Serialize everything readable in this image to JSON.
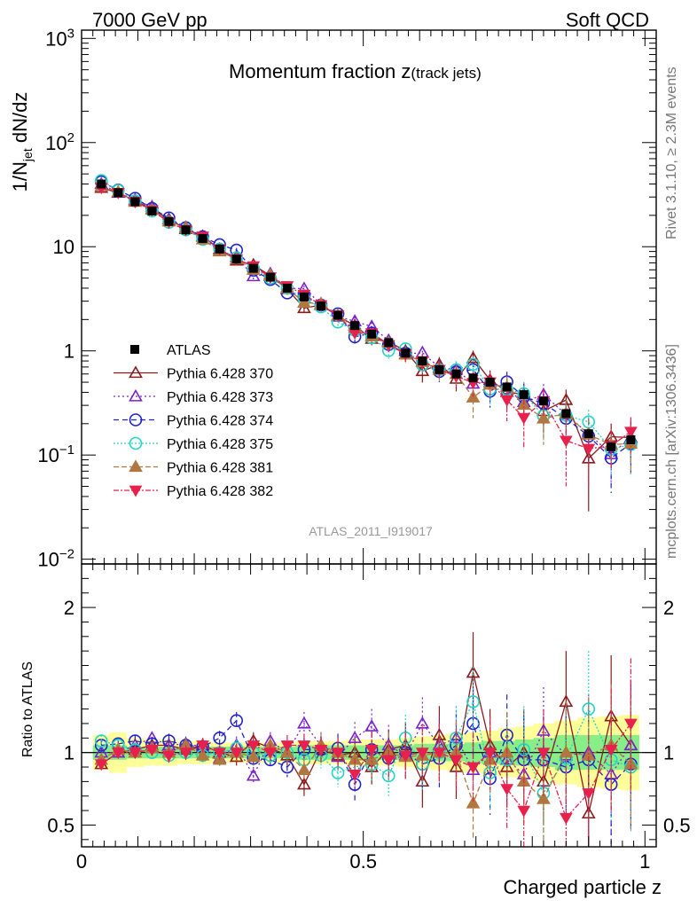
{
  "header": {
    "left": "7000 GeV pp",
    "right": "Soft QCD"
  },
  "side": {
    "rivet": "Rivet 3.1.10, ≥ 2.3M events",
    "mcplots": "mcplots.cern.ch [arXiv:1306.3436]"
  },
  "chart_data": [
    {
      "type": "scatter",
      "role": "main",
      "title_main": "Momentum fraction z",
      "title_sub": "(track jets)",
      "ylabel": "1/N",
      "ylabel_sub": "jet",
      "ylabel_rest": " dN/dz",
      "yscale": "log",
      "ylim": [
        0.009,
        1200
      ],
      "xlim": [
        0,
        1.02
      ],
      "yticks": [
        {
          "v": 1000,
          "base": "10",
          "exp": "3"
        },
        {
          "v": 100,
          "base": "10",
          "exp": "2"
        },
        {
          "v": 10,
          "base": "10",
          "exp": ""
        },
        {
          "v": 1,
          "base": "1",
          "exp": ""
        },
        {
          "v": 0.1,
          "base": "10",
          "exp": "−1"
        },
        {
          "v": 0.01,
          "base": "10",
          "exp": "−2"
        }
      ],
      "watermark": "ATLAS_2011_I919017",
      "x": [
        0.035,
        0.065,
        0.095,
        0.125,
        0.155,
        0.185,
        0.215,
        0.245,
        0.275,
        0.305,
        0.335,
        0.365,
        0.395,
        0.425,
        0.455,
        0.485,
        0.515,
        0.545,
        0.575,
        0.605,
        0.635,
        0.665,
        0.695,
        0.725,
        0.755,
        0.785,
        0.82,
        0.86,
        0.9,
        0.94,
        0.975
      ],
      "data": {
        "name": "ATLAS",
        "values": [
          40.0,
          33.0,
          27.0,
          22.0,
          17.5,
          14.5,
          12.0,
          9.5,
          7.6,
          6.2,
          5.1,
          4.0,
          3.3,
          2.7,
          2.2,
          1.75,
          1.45,
          1.2,
          0.95,
          0.8,
          0.66,
          0.6,
          0.55,
          0.5,
          0.45,
          0.38,
          0.33,
          0.25,
          0.16,
          0.12,
          0.14
        ]
      },
      "legend": [
        {
          "name": "ATLAS"
        },
        {
          "name": "Pythia 6.428 370"
        },
        {
          "name": "Pythia 6.428 373"
        },
        {
          "name": "Pythia 6.428 374"
        },
        {
          "name": "Pythia 6.428 375"
        },
        {
          "name": "Pythia 6.428 381"
        },
        {
          "name": "Pythia 6.428 382"
        }
      ]
    },
    {
      "type": "scatter",
      "role": "ratio",
      "ylabel": "Ratio to ATLAS",
      "xlabel": "Charged particle z",
      "ylim": [
        0.35,
        2.3
      ],
      "yticks": [
        {
          "v": 2,
          "label": "2"
        },
        {
          "v": 1,
          "label": "1"
        },
        {
          "v": 0.5,
          "label": "0.5"
        }
      ],
      "xticks": [
        {
          "v": 0,
          "label": "0"
        },
        {
          "v": 0.5,
          "label": "0.5"
        },
        {
          "v": 1,
          "label": "1"
        }
      ],
      "band_inner": [
        0.05,
        0.05,
        0.04,
        0.04,
        0.04,
        0.04,
        0.04,
        0.04,
        0.04,
        0.04,
        0.04,
        0.04,
        0.05,
        0.05,
        0.05,
        0.05,
        0.05,
        0.05,
        0.05,
        0.06,
        0.06,
        0.06,
        0.07,
        0.08,
        0.08,
        0.09,
        0.1,
        0.12,
        0.12,
        0.12,
        0.12
      ],
      "band_outer": [
        0.12,
        0.14,
        0.1,
        0.09,
        0.09,
        0.08,
        0.08,
        0.07,
        0.07,
        0.07,
        0.07,
        0.07,
        0.08,
        0.08,
        0.08,
        0.09,
        0.09,
        0.09,
        0.1,
        0.11,
        0.12,
        0.13,
        0.14,
        0.15,
        0.17,
        0.18,
        0.2,
        0.22,
        0.24,
        0.25,
        0.26
      ],
      "series": [
        {
          "name": "Pythia 6.428 370",
          "color": "#8b1a1a",
          "marker": "triangle-open",
          "dash": "",
          "ratio": [
            0.92,
            1.0,
            1.02,
            1.05,
            1.05,
            1.02,
            1.05,
            1.0,
            0.97,
            1.08,
            1.03,
            0.98,
            0.78,
            1.02,
            0.98,
            1.0,
            0.9,
            1.02,
            1.05,
            0.8,
            1.12,
            0.9,
            1.55,
            1.05,
            0.9,
            1.0,
            0.8,
            1.35,
            0.58,
            1.25,
            1.05
          ],
          "err": [
            0.04,
            0.04,
            0.04,
            0.04,
            0.05,
            0.05,
            0.05,
            0.05,
            0.06,
            0.06,
            0.06,
            0.07,
            0.08,
            0.09,
            0.1,
            0.11,
            0.12,
            0.14,
            0.16,
            0.18,
            0.2,
            0.22,
            0.28,
            0.25,
            0.28,
            0.3,
            0.3,
            0.35,
            0.4,
            0.42,
            0.45
          ]
        },
        {
          "name": "Pythia 6.428 373",
          "color": "#7b22cc",
          "marker": "triangle-open",
          "dash": "2,3",
          "ratio": [
            1.0,
            1.0,
            1.05,
            1.1,
            1.05,
            1.06,
            1.04,
            0.96,
            1.05,
            0.84,
            1.08,
            1.0,
            1.2,
            1.05,
            0.97,
            1.1,
            1.18,
            1.05,
            0.98,
            1.2,
            1.05,
            1.1,
            0.88,
            1.0,
            0.95,
            0.85,
            1.15,
            0.98,
            1.0,
            0.85,
            1.05
          ],
          "err": [
            0.04,
            0.04,
            0.04,
            0.04,
            0.05,
            0.05,
            0.05,
            0.05,
            0.06,
            0.06,
            0.06,
            0.07,
            0.08,
            0.09,
            0.1,
            0.11,
            0.12,
            0.14,
            0.16,
            0.18,
            0.2,
            0.22,
            0.24,
            0.25,
            0.28,
            0.3,
            0.3,
            0.35,
            0.4,
            0.42,
            0.45
          ]
        },
        {
          "name": "Pythia 6.428 374",
          "color": "#2222cc",
          "marker": "circle-open",
          "dash": "6,4",
          "ratio": [
            1.05,
            1.06,
            1.08,
            1.06,
            1.08,
            1.05,
            1.04,
            1.1,
            1.22,
            0.96,
            0.95,
            0.9,
            1.02,
            1.02,
            1.03,
            0.78,
            1.02,
            0.96,
            1.0,
            0.92,
            0.96,
            1.05,
            1.2,
            0.82,
            1.12,
            0.95,
            0.95,
            0.9,
            0.95,
            0.78,
            0.92
          ],
          "err": [
            0.04,
            0.04,
            0.04,
            0.04,
            0.05,
            0.05,
            0.05,
            0.05,
            0.06,
            0.06,
            0.06,
            0.07,
            0.08,
            0.09,
            0.1,
            0.11,
            0.12,
            0.14,
            0.16,
            0.18,
            0.2,
            0.22,
            0.24,
            0.25,
            0.28,
            0.3,
            0.3,
            0.35,
            0.4,
            0.42,
            0.45
          ]
        },
        {
          "name": "Pythia 6.428 375",
          "color": "#22d4c4",
          "marker": "circle-open",
          "dash": "2,2",
          "ratio": [
            1.08,
            1.05,
            1.02,
            1.0,
            0.98,
            1.0,
            0.98,
            1.0,
            1.03,
            1.0,
            0.98,
            1.0,
            0.95,
            0.98,
            0.86,
            0.9,
            0.92,
            0.84,
            1.1,
            0.92,
            1.0,
            1.1,
            1.35,
            0.86,
            0.95,
            1.02,
            0.72,
            0.96,
            1.3,
            0.95,
            0.9
          ],
          "err": [
            0.04,
            0.04,
            0.04,
            0.04,
            0.05,
            0.05,
            0.05,
            0.05,
            0.06,
            0.06,
            0.06,
            0.07,
            0.08,
            0.09,
            0.1,
            0.11,
            0.12,
            0.14,
            0.16,
            0.18,
            0.2,
            0.22,
            0.24,
            0.25,
            0.28,
            0.3,
            0.3,
            0.35,
            0.4,
            0.42,
            0.45
          ]
        },
        {
          "name": "Pythia 6.428 381",
          "color": "#b07840",
          "marker": "triangle-filled",
          "dash": "6,3",
          "ratio": [
            0.95,
            1.02,
            1.0,
            1.03,
            1.0,
            1.05,
            0.98,
            0.95,
            1.0,
            0.97,
            1.05,
            1.0,
            0.88,
            1.05,
            1.0,
            0.95,
            0.95,
            1.0,
            0.97,
            0.98,
            1.0,
            1.0,
            0.65,
            0.95,
            1.0,
            0.8,
            0.68,
            1.0,
            0.98,
            1.05,
            0.92
          ],
          "err": [
            0.04,
            0.04,
            0.04,
            0.04,
            0.05,
            0.05,
            0.05,
            0.05,
            0.06,
            0.06,
            0.06,
            0.07,
            0.08,
            0.09,
            0.1,
            0.11,
            0.12,
            0.14,
            0.16,
            0.18,
            0.2,
            0.22,
            0.24,
            0.25,
            0.28,
            0.3,
            0.3,
            0.35,
            0.4,
            0.42,
            0.45
          ]
        },
        {
          "name": "Pythia 6.428 382",
          "color": "#e8204c",
          "marker": "triangle-down-filled",
          "dash": "6,2,2,2",
          "ratio": [
            0.92,
            1.0,
            1.0,
            1.02,
            0.98,
            1.0,
            1.05,
            1.0,
            1.0,
            1.05,
            1.0,
            1.05,
            1.05,
            1.02,
            1.0,
            0.85,
            1.02,
            0.95,
            0.98,
            1.0,
            1.0,
            0.95,
            0.9,
            1.0,
            0.75,
            0.6,
            1.0,
            0.55,
            0.72,
            1.02,
            1.2
          ],
          "err": [
            0.04,
            0.04,
            0.04,
            0.04,
            0.05,
            0.05,
            0.05,
            0.05,
            0.06,
            0.06,
            0.06,
            0.07,
            0.08,
            0.09,
            0.1,
            0.11,
            0.12,
            0.14,
            0.16,
            0.18,
            0.2,
            0.22,
            0.24,
            0.25,
            0.28,
            0.3,
            0.3,
            0.35,
            0.4,
            0.42,
            0.45
          ]
        }
      ]
    }
  ]
}
